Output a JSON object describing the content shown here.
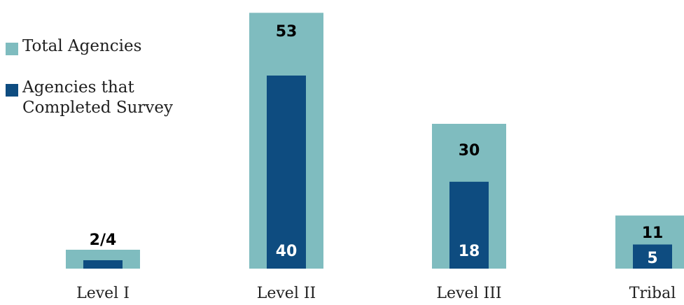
{
  "chart_data": {
    "type": "bar",
    "categories": [
      "Level I",
      "Level II",
      "Level III",
      "Tribal"
    ],
    "series": [
      {
        "name": "Total Agencies",
        "values": [
          4,
          53,
          30,
          11
        ],
        "color": "#7fbcbf"
      },
      {
        "name": "Agencies that Completed Survey",
        "values": [
          2,
          40,
          18,
          5
        ],
        "color": "#0e4c80"
      }
    ],
    "data_labels": [
      "2/4",
      "53",
      "30",
      "11",
      "40",
      "18",
      "5"
    ],
    "legend": {
      "position": "left",
      "items": [
        {
          "label": "Total Agencies",
          "color": "#7fbcbf"
        },
        {
          "label": "Agencies that Completed Survey",
          "color": "#0e4c80"
        }
      ]
    },
    "grid": false,
    "title": "",
    "xlabel": "",
    "ylabel": ""
  }
}
